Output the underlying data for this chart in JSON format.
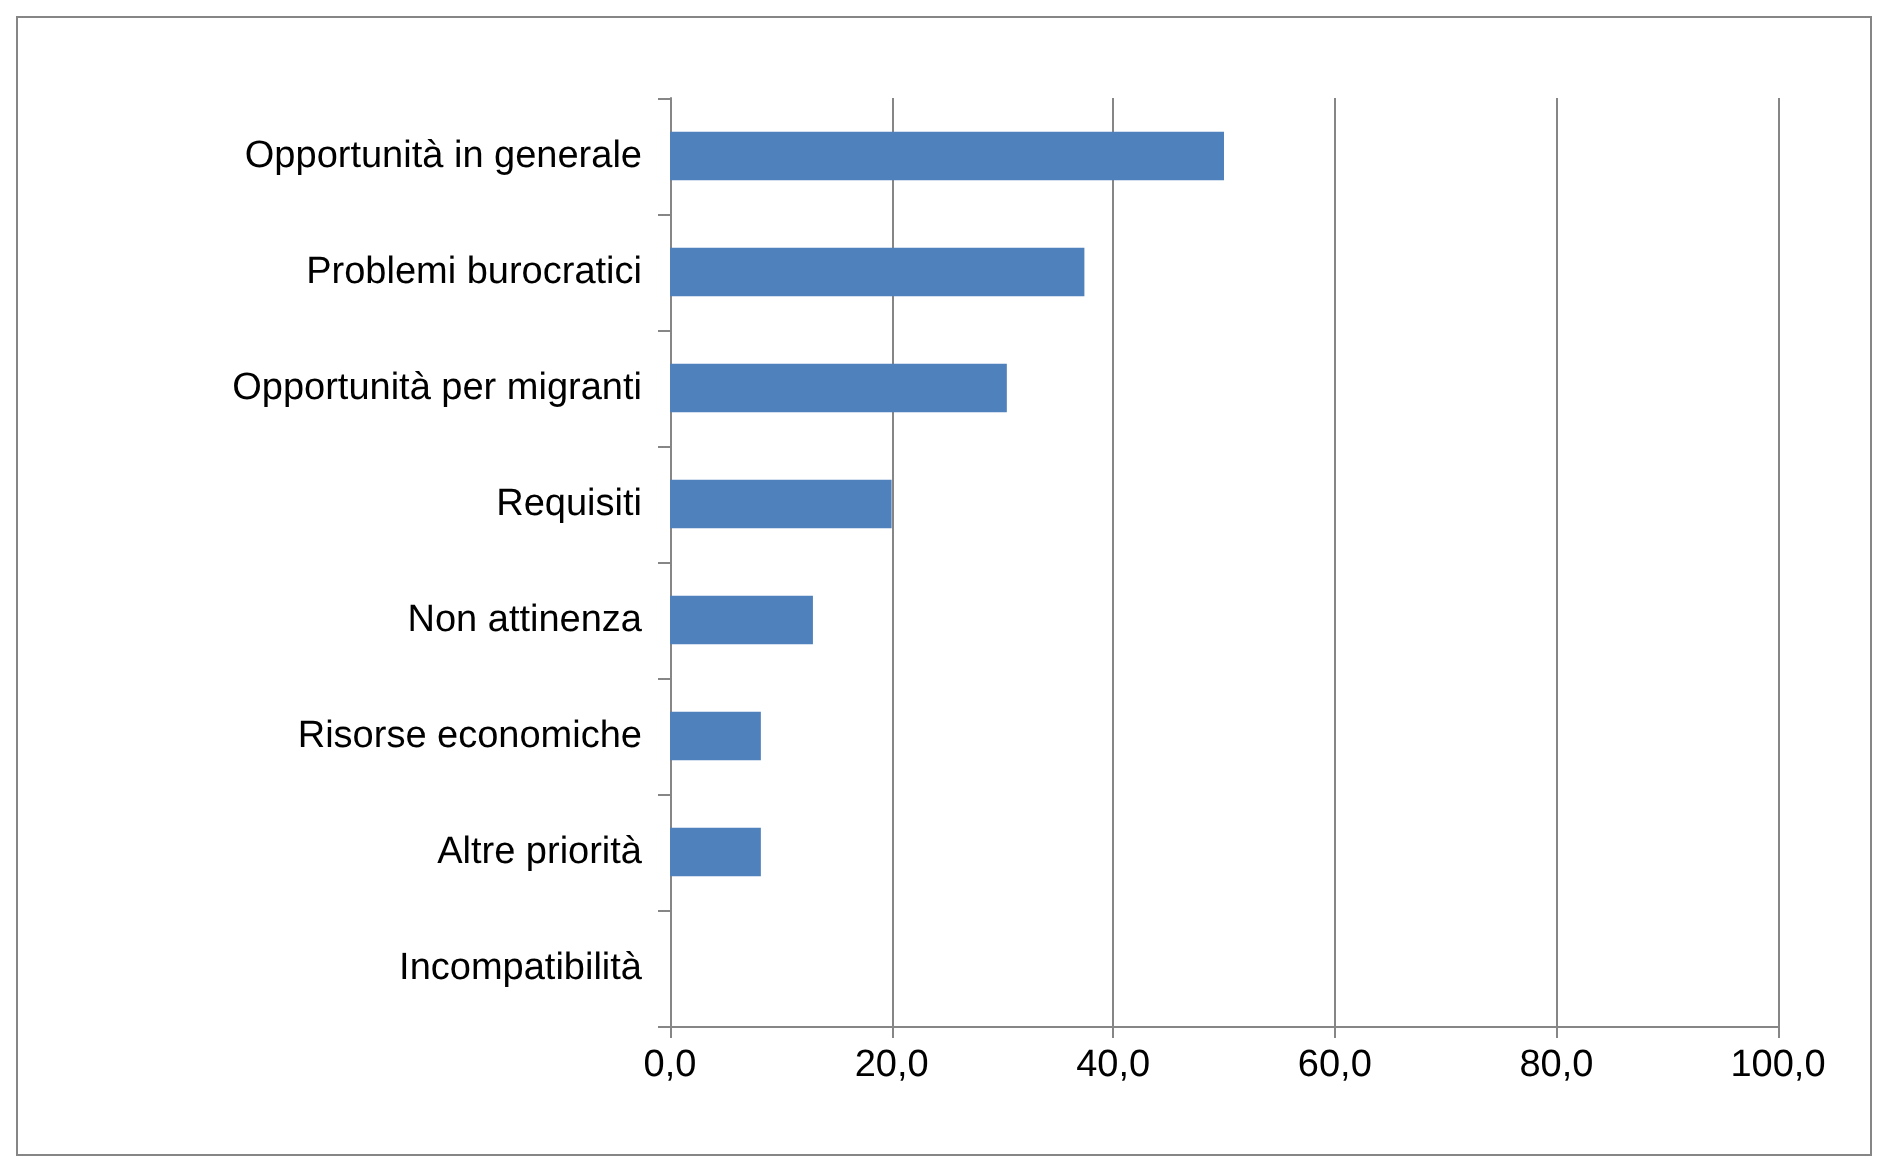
{
  "chart_data": {
    "type": "bar",
    "orientation": "horizontal",
    "categories": [
      "Opportunità in generale",
      "Problemi burocratici",
      "Opportunità per migranti",
      "Requisiti",
      "Non attinenza",
      "Risorse economiche",
      "Altre priorità",
      "Incompatibilità"
    ],
    "values": [
      50,
      37.4,
      30.4,
      20,
      12.9,
      8.2,
      8.2,
      0
    ],
    "color": "#4f81bd",
    "xlim": [
      0,
      100
    ],
    "xticks": [
      {
        "value": 0,
        "label": "0,0"
      },
      {
        "value": 20,
        "label": "20,0"
      },
      {
        "value": 40,
        "label": "40,0"
      },
      {
        "value": 60,
        "label": "60,0"
      },
      {
        "value": 80,
        "label": "80,0"
      },
      {
        "value": 100,
        "label": "100,0"
      }
    ],
    "grid": "x"
  }
}
